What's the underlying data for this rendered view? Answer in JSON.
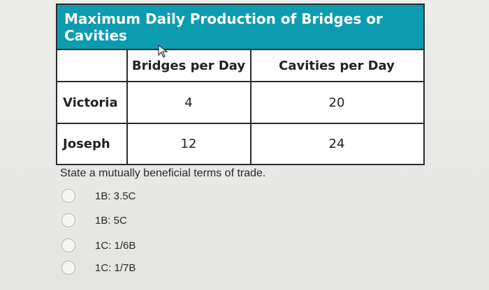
{
  "table": {
    "title": "Maximum Daily Production of Bridges or Cavities",
    "columns": [
      "",
      "Bridges per Day",
      "Cavities per Day"
    ],
    "rows": [
      {
        "name": "Victoria",
        "bridges": "4",
        "cavities": "20"
      },
      {
        "name": "Joseph",
        "bridges": "12",
        "cavities": "24"
      }
    ]
  },
  "question": {
    "prompt": "State a mutually beneficial terms of trade.",
    "options": [
      "1B: 3.5C",
      "1B: 5C",
      "1C: 1/6B",
      "1C: 1/7B"
    ]
  },
  "colors": {
    "title_bg": "#0d9bb0",
    "border": "#2a2a2a"
  },
  "icons": {
    "cursor": "mouse-pointer-icon"
  }
}
